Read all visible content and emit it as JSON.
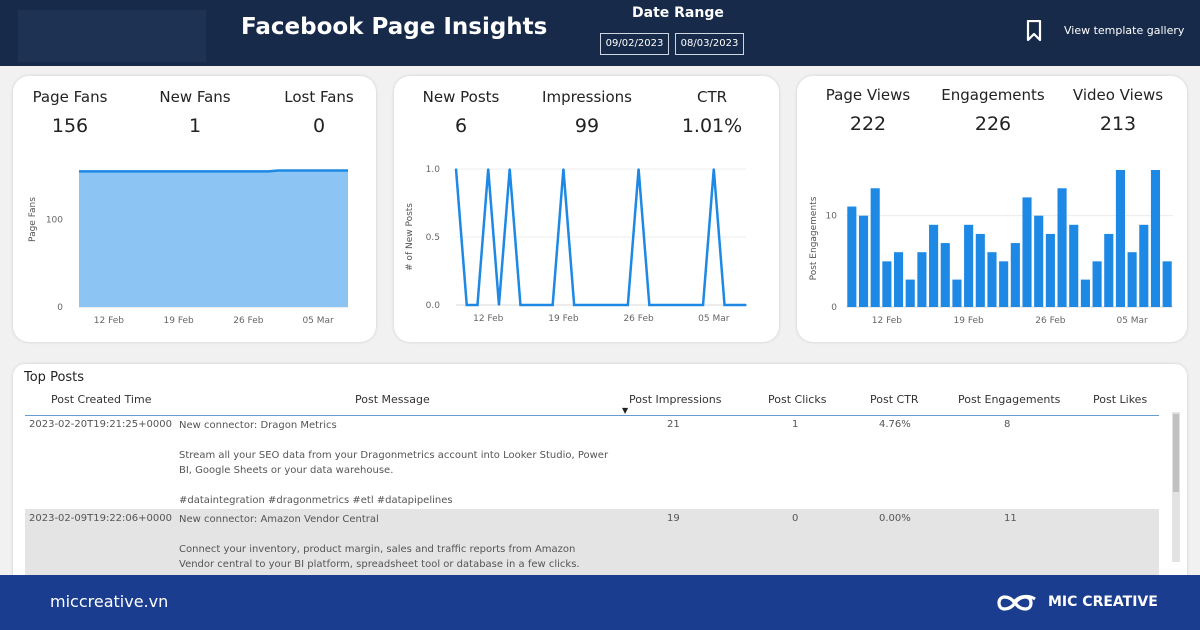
{
  "header": {
    "title": "Facebook Page Insights",
    "date_range_label": "Date Range",
    "date_start": "09/02/2023",
    "date_end": "08/03/2023",
    "gallery_link": "View template gallery",
    "bookmark_icon": "bookmark-icon"
  },
  "cards": {
    "fans": {
      "kpis": [
        {
          "label": "Page Fans",
          "value": "156"
        },
        {
          "label": "New Fans",
          "value": "1"
        },
        {
          "label": "Lost Fans",
          "value": "0"
        }
      ]
    },
    "posts": {
      "kpis": [
        {
          "label": "New Posts",
          "value": "6"
        },
        {
          "label": "Impressions",
          "value": "99"
        },
        {
          "label": "CTR",
          "value": "1.01%"
        }
      ]
    },
    "views": {
      "kpis": [
        {
          "label": "Page Views",
          "value": "222"
        },
        {
          "label": "Engagements",
          "value": "226"
        },
        {
          "label": "Video Views",
          "value": "213"
        }
      ]
    }
  },
  "chart_data": [
    {
      "type": "area",
      "ylabel": "Page Fans",
      "ylim": [
        0,
        200
      ],
      "yticks": [
        "0",
        "100"
      ],
      "xticks": [
        "12 Feb",
        "19 Feb",
        "26 Feb",
        "05 Mar"
      ],
      "x": [
        "2023-02-09",
        "2023-02-10",
        "2023-02-11",
        "2023-02-12",
        "2023-02-13",
        "2023-02-14",
        "2023-02-15",
        "2023-02-16",
        "2023-02-17",
        "2023-02-18",
        "2023-02-19",
        "2023-02-20",
        "2023-02-21",
        "2023-02-22",
        "2023-02-23",
        "2023-02-24",
        "2023-02-25",
        "2023-02-26",
        "2023-02-27",
        "2023-02-28",
        "2023-03-01",
        "2023-03-02",
        "2023-03-03",
        "2023-03-04",
        "2023-03-05",
        "2023-03-06",
        "2023-03-07",
        "2023-03-08"
      ],
      "values": [
        155,
        155,
        155,
        155,
        155,
        155,
        155,
        155,
        155,
        155,
        155,
        155,
        155,
        155,
        155,
        155,
        155,
        155,
        155,
        155,
        156,
        156,
        156,
        156,
        156,
        156,
        156,
        156
      ],
      "color": "#8cc4f4",
      "line_color": "#1e88e5"
    },
    {
      "type": "line",
      "ylabel": "# of New Posts",
      "ylim": [
        0,
        1
      ],
      "yticks": [
        "0.0",
        "0.5",
        "1.0"
      ],
      "xticks": [
        "12 Feb",
        "19 Feb",
        "26 Feb",
        "05 Mar"
      ],
      "x": [
        "2023-02-09",
        "2023-02-10",
        "2023-02-11",
        "2023-02-12",
        "2023-02-13",
        "2023-02-14",
        "2023-02-15",
        "2023-02-16",
        "2023-02-17",
        "2023-02-18",
        "2023-02-19",
        "2023-02-20",
        "2023-02-21",
        "2023-02-22",
        "2023-02-23",
        "2023-02-24",
        "2023-02-25",
        "2023-02-26",
        "2023-02-27",
        "2023-02-28",
        "2023-03-01",
        "2023-03-02",
        "2023-03-03",
        "2023-03-04",
        "2023-03-05",
        "2023-03-06",
        "2023-03-07",
        "2023-03-08"
      ],
      "values": [
        1,
        0,
        0,
        1,
        0,
        1,
        0,
        0,
        0,
        0,
        1,
        0,
        0,
        0,
        0,
        0,
        0,
        1,
        0,
        0,
        0,
        0,
        0,
        0,
        1,
        0,
        0,
        0
      ],
      "color": "#1e88e5"
    },
    {
      "type": "bar",
      "ylabel": "Post Engagements",
      "ylim": [
        0,
        15
      ],
      "yticks": [
        "0",
        "10"
      ],
      "xticks": [
        "12 Feb",
        "19 Feb",
        "26 Feb",
        "05 Mar"
      ],
      "x": [
        "2023-02-09",
        "2023-02-10",
        "2023-02-11",
        "2023-02-12",
        "2023-02-13",
        "2023-02-14",
        "2023-02-15",
        "2023-02-16",
        "2023-02-17",
        "2023-02-18",
        "2023-02-19",
        "2023-02-20",
        "2023-02-21",
        "2023-02-22",
        "2023-02-23",
        "2023-02-24",
        "2023-02-25",
        "2023-02-26",
        "2023-02-27",
        "2023-02-28",
        "2023-03-01",
        "2023-03-02",
        "2023-03-03",
        "2023-03-04",
        "2023-03-05",
        "2023-03-06",
        "2023-03-07",
        "2023-03-08"
      ],
      "values": [
        11,
        10,
        13,
        5,
        6,
        3,
        6,
        9,
        7,
        3,
        9,
        8,
        6,
        5,
        7,
        12,
        10,
        8,
        13,
        9,
        3,
        5,
        8,
        15,
        6,
        9,
        15,
        5
      ],
      "color": "#1e88e5"
    }
  ],
  "table": {
    "title": "Top Posts",
    "columns": [
      "Post Created Time",
      "Post Message",
      "Post Impressions",
      "Post Clicks",
      "Post CTR",
      "Post Engagements",
      "Post Likes"
    ],
    "sort_icon": "sort-desc-icon",
    "rows": [
      {
        "time": "2023-02-20T19:21:25+0000",
        "message": [
          "New connector: Dragon Metrics",
          "Stream all your SEO data from your Dragonmetrics account into Looker Studio, Power BI, Google Sheets or your data warehouse.",
          "#dataintegration #dragonmetrics #etl #datapipelines"
        ],
        "impressions": "21",
        "clicks": "1",
        "ctr": "4.76%",
        "engagements": "8",
        "likes": ""
      },
      {
        "time": "2023-02-09T19:22:06+0000",
        "message": [
          "New connector: Amazon Vendor Central",
          "Connect your inventory, product margin, sales and traffic reports from Amazon Vendor central to your BI platform, spreadsheet tool or database in a few clicks."
        ],
        "impressions": "19",
        "clicks": "0",
        "ctr": "0.00%",
        "engagements": "11",
        "likes": ""
      }
    ]
  },
  "footer": {
    "site": "miccreative.vn",
    "brand": "MIC CREATIVE",
    "logo_icon": "infinity-logo-icon"
  }
}
